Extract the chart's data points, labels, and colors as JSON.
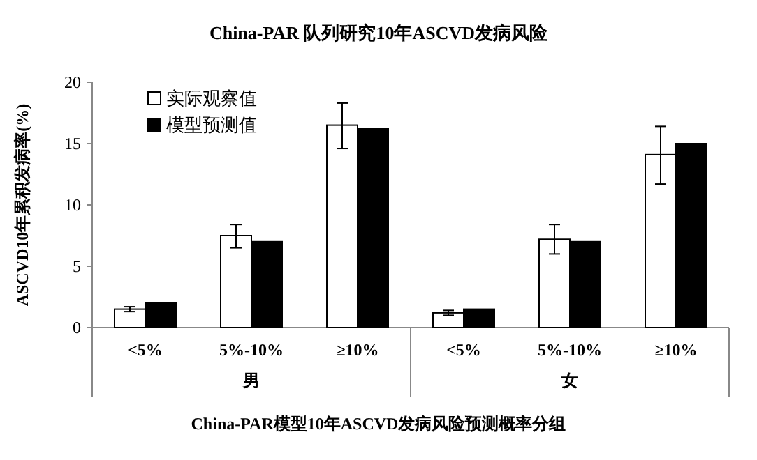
{
  "chart_data": {
    "type": "bar",
    "title": "China-PAR 队列研究10年ASCVD发病风险",
    "xlabel": "China-PAR模型10年ASCVD发病风险预测概率分组",
    "ylabel": "ASCVD10年累积发病率(%)",
    "categories": [
      "<5%",
      "5%-10%",
      "≥10%",
      "<5%",
      "5%-10%",
      "≥10%"
    ],
    "series": [
      {
        "name": "实际观察值",
        "color": "#ffffff",
        "values": [
          1.5,
          7.5,
          16.5,
          1.2,
          7.2,
          14.1
        ],
        "errors": [
          [
            1.3,
            1.7
          ],
          [
            6.5,
            8.4
          ],
          [
            14.6,
            18.3
          ],
          [
            1.0,
            1.4
          ],
          [
            6.0,
            8.4
          ],
          [
            11.7,
            16.4
          ]
        ]
      },
      {
        "name": "模型预测值",
        "color": "#000000",
        "values": [
          2.0,
          7.0,
          16.2,
          1.5,
          7.0,
          15.0
        ]
      }
    ],
    "ylim": [
      0,
      20
    ],
    "yticks": [
      0,
      5,
      10,
      15,
      20
    ],
    "grid": false,
    "legend": "top left",
    "annotations": [
      "男",
      "女"
    ]
  }
}
